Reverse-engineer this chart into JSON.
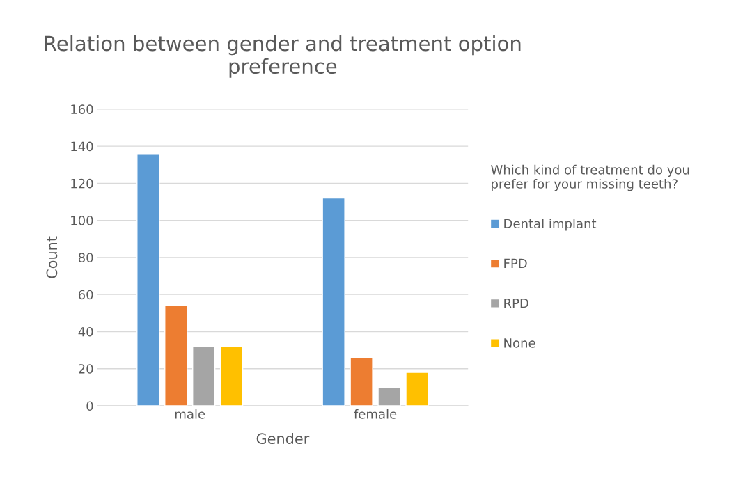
{
  "chart_data": {
    "type": "bar",
    "title": "Relation between gender and treatment option preference",
    "xlabel": "Gender",
    "ylabel": "Count",
    "legend_title": "Which kind of treatment do you\nprefer for your missing teeth?",
    "categories": [
      "male",
      "female"
    ],
    "series": [
      {
        "name": "Dental implant",
        "color": "#5b9bd5",
        "values": [
          136,
          112
        ]
      },
      {
        "name": "FPD",
        "color": "#ed7d31",
        "values": [
          54,
          26
        ]
      },
      {
        "name": "RPD",
        "color": "#a5a5a5",
        "values": [
          32,
          10
        ]
      },
      {
        "name": "None",
        "color": "#ffc000",
        "values": [
          32,
          18
        ]
      }
    ],
    "ylim": [
      0,
      160
    ],
    "yticks": [
      0,
      20,
      40,
      60,
      80,
      100,
      120,
      140,
      160
    ],
    "grid": "y",
    "legend": "right"
  }
}
